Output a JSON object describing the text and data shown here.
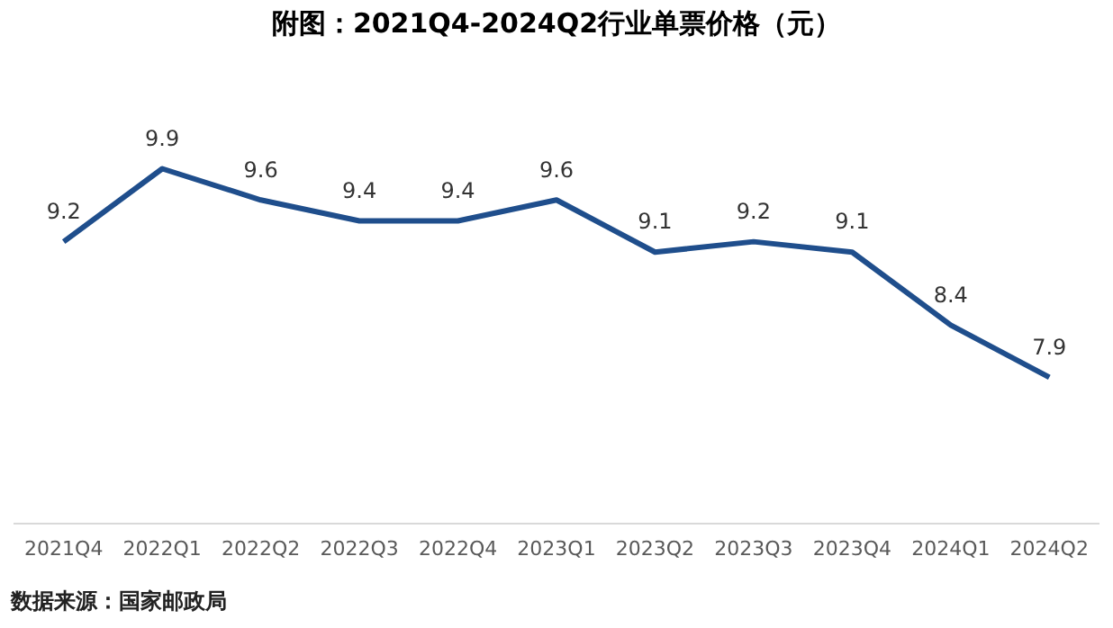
{
  "chart_data": {
    "type": "line",
    "title": "附图：2021Q4-2024Q2行业单票价格（元）",
    "categories": [
      "2021Q4",
      "2022Q1",
      "2022Q2",
      "2022Q3",
      "2022Q4",
      "2023Q1",
      "2023Q2",
      "2023Q3",
      "2023Q4",
      "2024Q1",
      "2024Q2"
    ],
    "series": [
      {
        "color": "#1f4e8c",
        "values": [
          9.2,
          9.9,
          9.6,
          9.4,
          9.4,
          9.6,
          9.1,
          9.2,
          9.1,
          8.4,
          7.9
        ]
      }
    ],
    "tick_labels": "x",
    "grid": false,
    "legend": false,
    "marker": "none",
    "line_style": "solid",
    "data_labels": true,
    "annotations": [
      "数据来源：国家邮政局"
    ]
  }
}
